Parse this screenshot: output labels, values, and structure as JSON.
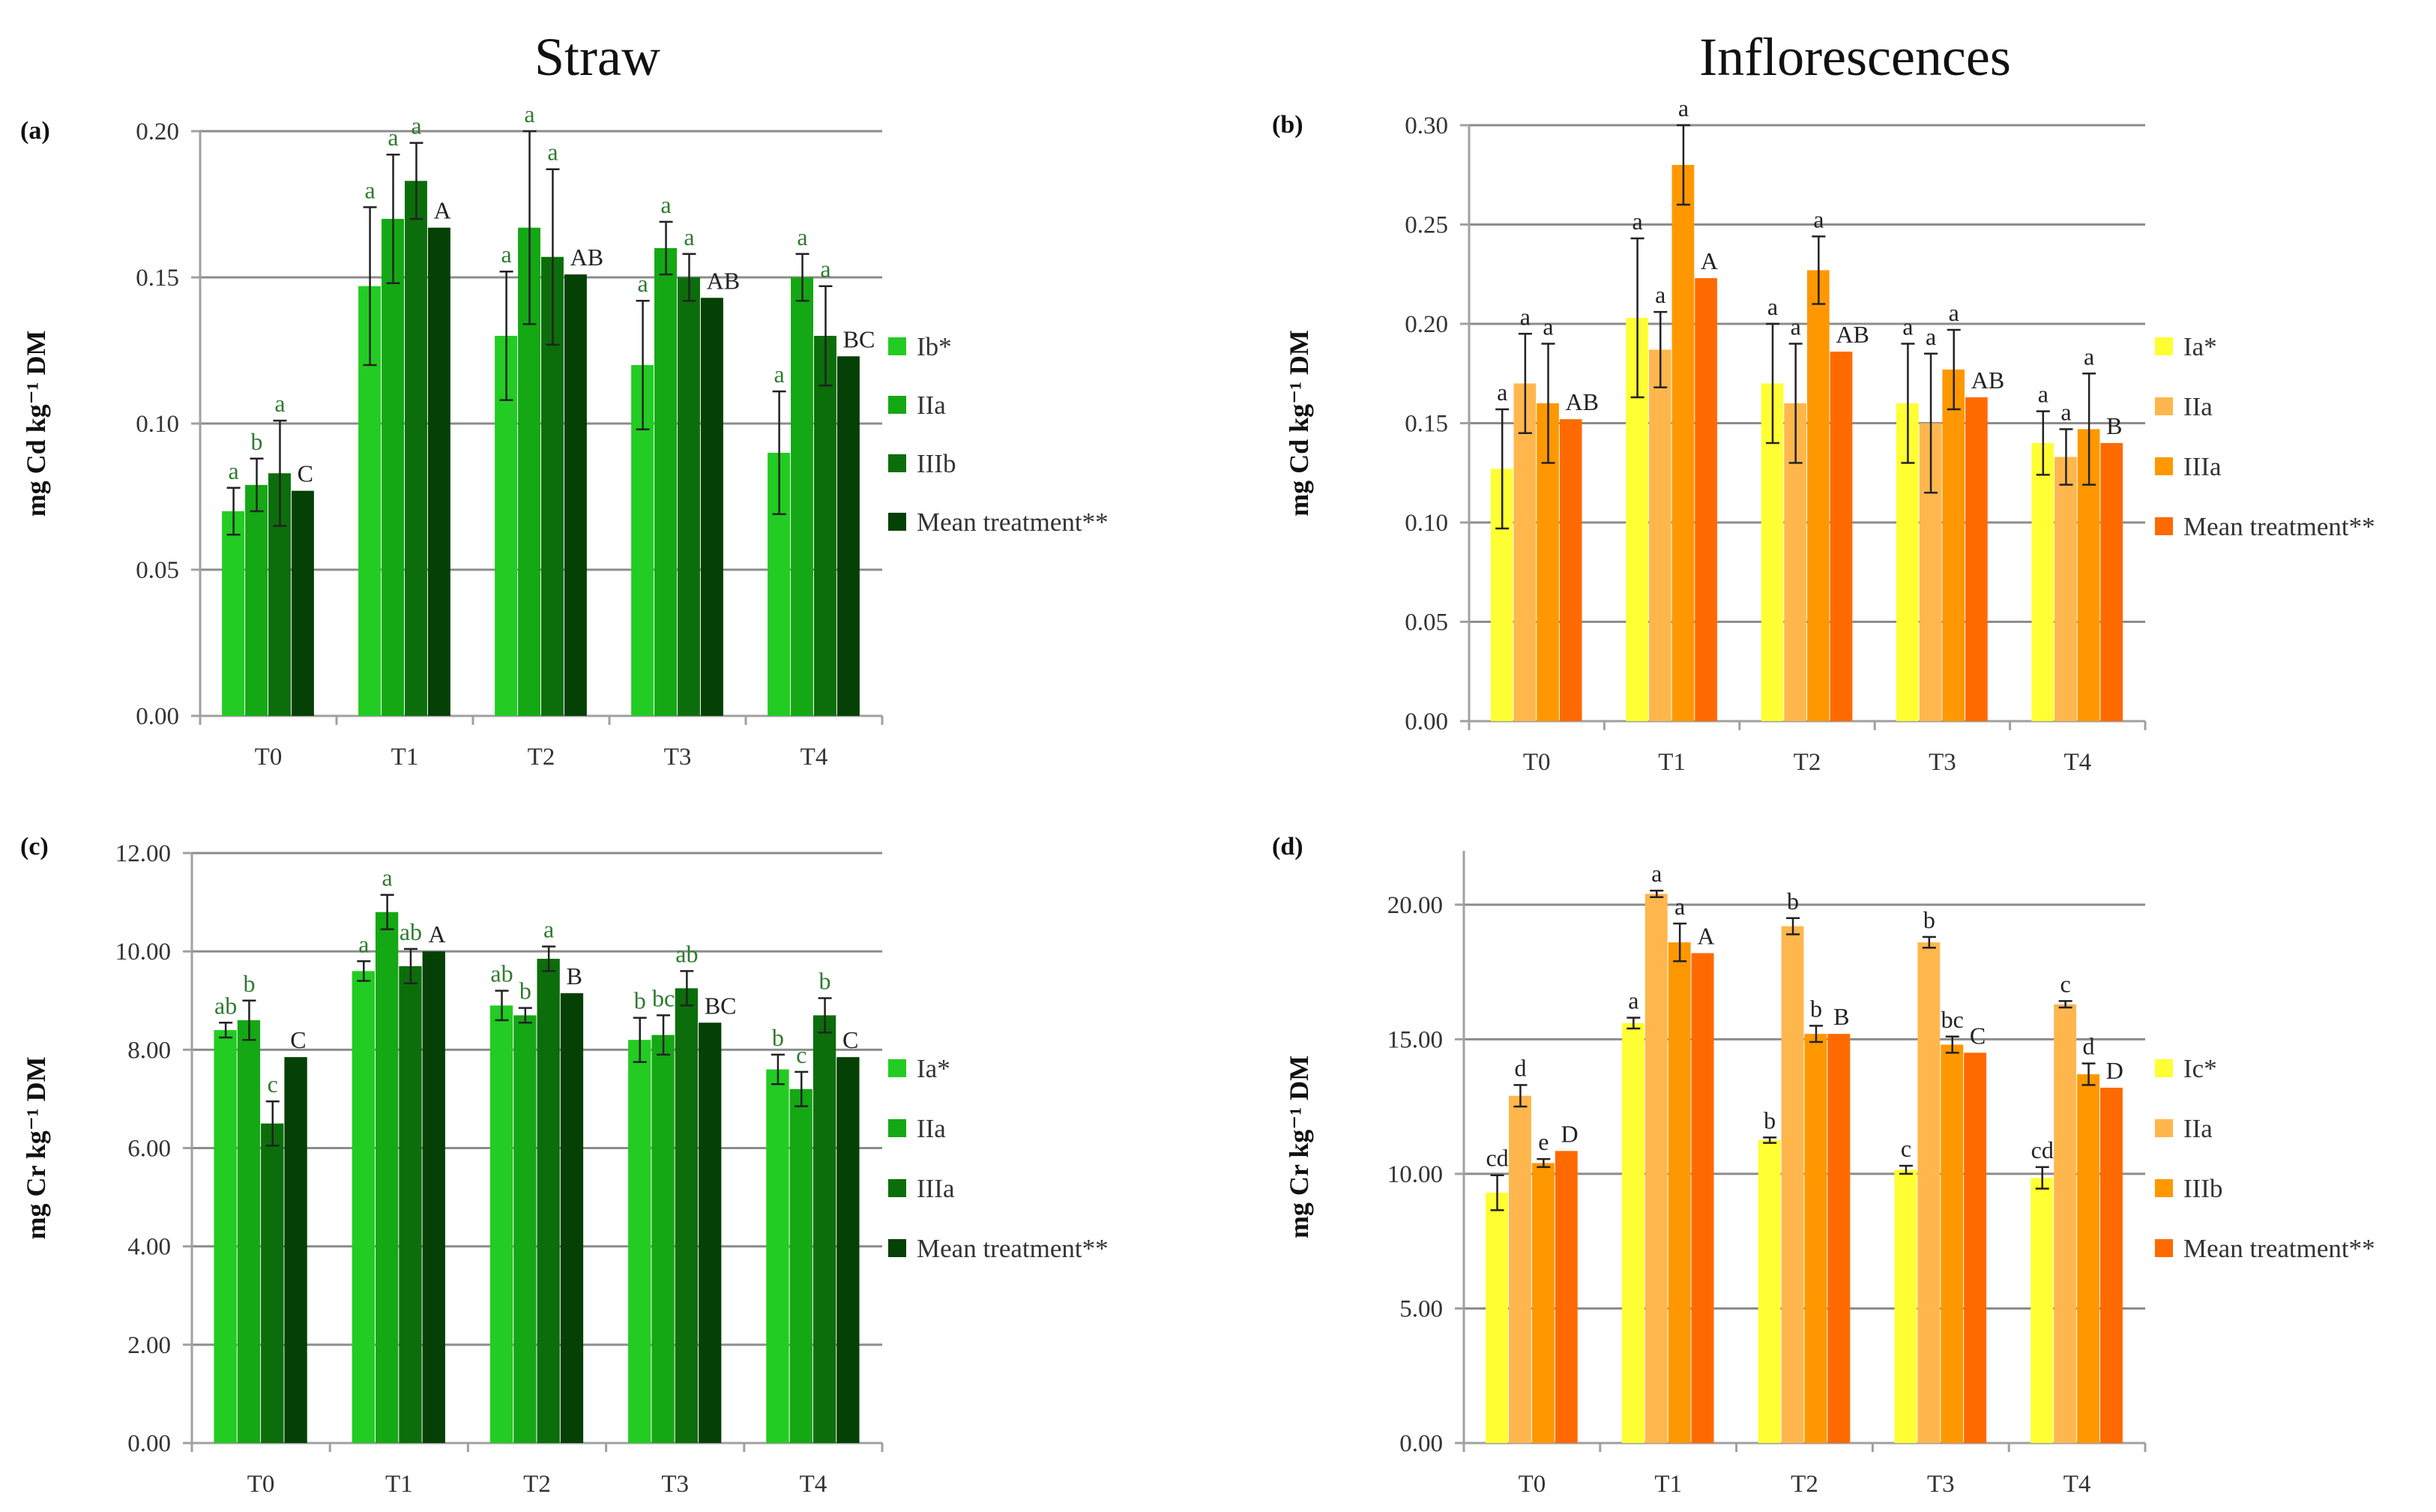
{
  "figure": {
    "column_titles": [
      "Straw",
      "Inflorescences"
    ]
  },
  "chart_data": [
    {
      "type": "bar",
      "panel": "(a)",
      "title": "",
      "xlabel": "",
      "ylabel": "mg Cd kg⁻¹ DM",
      "ylim": [
        0,
        0.2
      ],
      "yticks": [
        0.0,
        0.05,
        0.1,
        0.15,
        0.2
      ],
      "ytick_labels": [
        "0.00",
        "0.05",
        "0.10",
        "0.15",
        "0.20"
      ],
      "categories": [
        "T0",
        "T1",
        "T2",
        "T3",
        "T4"
      ],
      "series": [
        {
          "name": "Ib*",
          "color": "#22cc22",
          "values": [
            0.07,
            0.147,
            0.13,
            0.12,
            0.09
          ],
          "errors": [
            0.008,
            0.027,
            0.022,
            0.022,
            0.021
          ],
          "labels": [
            "a",
            "a",
            "a",
            "a",
            "a"
          ]
        },
        {
          "name": "IIa",
          "color": "#14a814",
          "values": [
            0.079,
            0.17,
            0.167,
            0.16,
            0.15
          ],
          "errors": [
            0.009,
            0.022,
            0.033,
            0.009,
            0.008
          ],
          "labels": [
            "b",
            "a",
            "a",
            "a",
            "a"
          ]
        },
        {
          "name": "IIIb",
          "color": "#0b6e0b",
          "values": [
            0.083,
            0.183,
            0.157,
            0.15,
            0.13
          ],
          "errors": [
            0.018,
            0.013,
            0.03,
            0.008,
            0.017
          ],
          "labels": [
            "a",
            "a",
            "a",
            "a",
            "a"
          ]
        },
        {
          "name": "Mean treatment**",
          "color": "#054005",
          "values": [
            0.077,
            0.167,
            0.151,
            0.143,
            0.123
          ],
          "errors": [
            0,
            0,
            0,
            0,
            0
          ],
          "labels": [
            "C",
            "A",
            "AB",
            "AB",
            "BC"
          ]
        }
      ],
      "label_color": "#2e7a2e"
    },
    {
      "type": "bar",
      "panel": "(b)",
      "title": "",
      "xlabel": "",
      "ylabel": "mg Cd kg⁻¹ DM",
      "ylim": [
        0,
        0.3
      ],
      "yticks": [
        0.0,
        0.05,
        0.1,
        0.15,
        0.2,
        0.25,
        0.3
      ],
      "ytick_labels": [
        "0.00",
        "0.05",
        "0.10",
        "0.15",
        "0.20",
        "0.25",
        "0.30"
      ],
      "categories": [
        "T0",
        "T1",
        "T2",
        "T3",
        "T4"
      ],
      "series": [
        {
          "name": "Ia*",
          "color": "#ffff33",
          "values": [
            0.127,
            0.203,
            0.17,
            0.16,
            0.14
          ],
          "errors": [
            0.03,
            0.04,
            0.03,
            0.03,
            0.016
          ],
          "labels": [
            "a",
            "a",
            "a",
            "a",
            "a"
          ]
        },
        {
          "name": "IIa",
          "color": "#ffb74d",
          "values": [
            0.17,
            0.187,
            0.16,
            0.15,
            0.133
          ],
          "errors": [
            0.025,
            0.019,
            0.03,
            0.035,
            0.014
          ],
          "labels": [
            "a",
            "a",
            "a",
            "a",
            "a"
          ]
        },
        {
          "name": "IIIa",
          "color": "#ff9800",
          "values": [
            0.16,
            0.28,
            0.227,
            0.177,
            0.147
          ],
          "errors": [
            0.03,
            0.02,
            0.017,
            0.02,
            0.028
          ],
          "labels": [
            "a",
            "a",
            "a",
            "a",
            "a"
          ]
        },
        {
          "name": "Mean treatment**",
          "color": "#ff6a00",
          "values": [
            0.152,
            0.223,
            0.186,
            0.163,
            0.14
          ],
          "errors": [
            0,
            0,
            0,
            0,
            0
          ],
          "labels": [
            "AB",
            "A",
            "AB",
            "AB",
            "B"
          ]
        }
      ],
      "label_color": "#222222"
    },
    {
      "type": "bar",
      "panel": "(c)",
      "title": "",
      "xlabel": "",
      "ylabel": "mg Cr kg⁻¹ DM",
      "ylim": [
        0,
        12
      ],
      "yticks": [
        0,
        2,
        4,
        6,
        8,
        10,
        12
      ],
      "ytick_labels": [
        "0.00",
        "2.00",
        "4.00",
        "6.00",
        "8.00",
        "10.00",
        "12.00"
      ],
      "categories": [
        "T0",
        "T1",
        "T2",
        "T3",
        "T4"
      ],
      "series": [
        {
          "name": "Ia*",
          "color": "#22cc22",
          "values": [
            8.4,
            9.6,
            8.9,
            8.2,
            7.6
          ],
          "errors": [
            0.15,
            0.2,
            0.3,
            0.45,
            0.3
          ],
          "labels": [
            "ab",
            "a",
            "ab",
            "b",
            "b"
          ]
        },
        {
          "name": "IIa",
          "color": "#14a814",
          "values": [
            8.6,
            10.8,
            8.7,
            8.3,
            7.2
          ],
          "errors": [
            0.4,
            0.35,
            0.15,
            0.4,
            0.35
          ],
          "labels": [
            "b",
            "a",
            "b",
            "bc",
            "c"
          ]
        },
        {
          "name": "IIIa",
          "color": "#0b6e0b",
          "values": [
            6.5,
            9.7,
            9.85,
            9.25,
            8.7
          ],
          "errors": [
            0.45,
            0.35,
            0.25,
            0.35,
            0.35
          ],
          "labels": [
            "c",
            "ab",
            "a",
            "ab",
            "b"
          ]
        },
        {
          "name": "Mean treatment**",
          "color": "#054005",
          "values": [
            7.85,
            10.0,
            9.15,
            8.55,
            7.85
          ],
          "errors": [
            0,
            0,
            0,
            0,
            0
          ],
          "labels": [
            "C",
            "A",
            "B",
            "BC",
            "C"
          ]
        }
      ],
      "label_color": "#2e7a2e"
    },
    {
      "type": "bar",
      "panel": "(d)",
      "title": "",
      "xlabel": "",
      "ylabel": "mg Cr kg⁻¹ DM",
      "ylim": [
        0,
        22
      ],
      "yticks": [
        0,
        5,
        10,
        15,
        20
      ],
      "ytick_labels": [
        "0.00",
        "5.00",
        "10.00",
        "15.00",
        "20.00"
      ],
      "categories": [
        "T0",
        "T1",
        "T2",
        "T3",
        "T4"
      ],
      "series": [
        {
          "name": "Ic*",
          "color": "#ffff33",
          "values": [
            9.3,
            15.6,
            11.25,
            10.15,
            9.85
          ],
          "errors": [
            0.65,
            0.2,
            0.1,
            0.15,
            0.4
          ],
          "labels": [
            "cd",
            "a",
            "b",
            "c",
            "cd"
          ]
        },
        {
          "name": "IIa",
          "color": "#ffb74d",
          "values": [
            12.9,
            20.4,
            19.2,
            18.6,
            16.3
          ],
          "errors": [
            0.4,
            0.12,
            0.3,
            0.2,
            0.12
          ],
          "labels": [
            "d",
            "a",
            "b",
            "b",
            "c"
          ]
        },
        {
          "name": "IIIb",
          "color": "#ff9800",
          "values": [
            10.4,
            18.6,
            15.2,
            14.8,
            13.7
          ],
          "errors": [
            0.15,
            0.7,
            0.3,
            0.3,
            0.4
          ],
          "labels": [
            "e",
            "a",
            "b",
            "bc",
            "d"
          ]
        },
        {
          "name": "Mean treatment**",
          "color": "#ff6a00",
          "values": [
            10.85,
            18.2,
            15.2,
            14.5,
            13.2
          ],
          "errors": [
            0,
            0,
            0,
            0,
            0
          ],
          "labels": [
            "D",
            "A",
            "B",
            "C",
            "D"
          ]
        }
      ],
      "label_color": "#222222"
    }
  ]
}
